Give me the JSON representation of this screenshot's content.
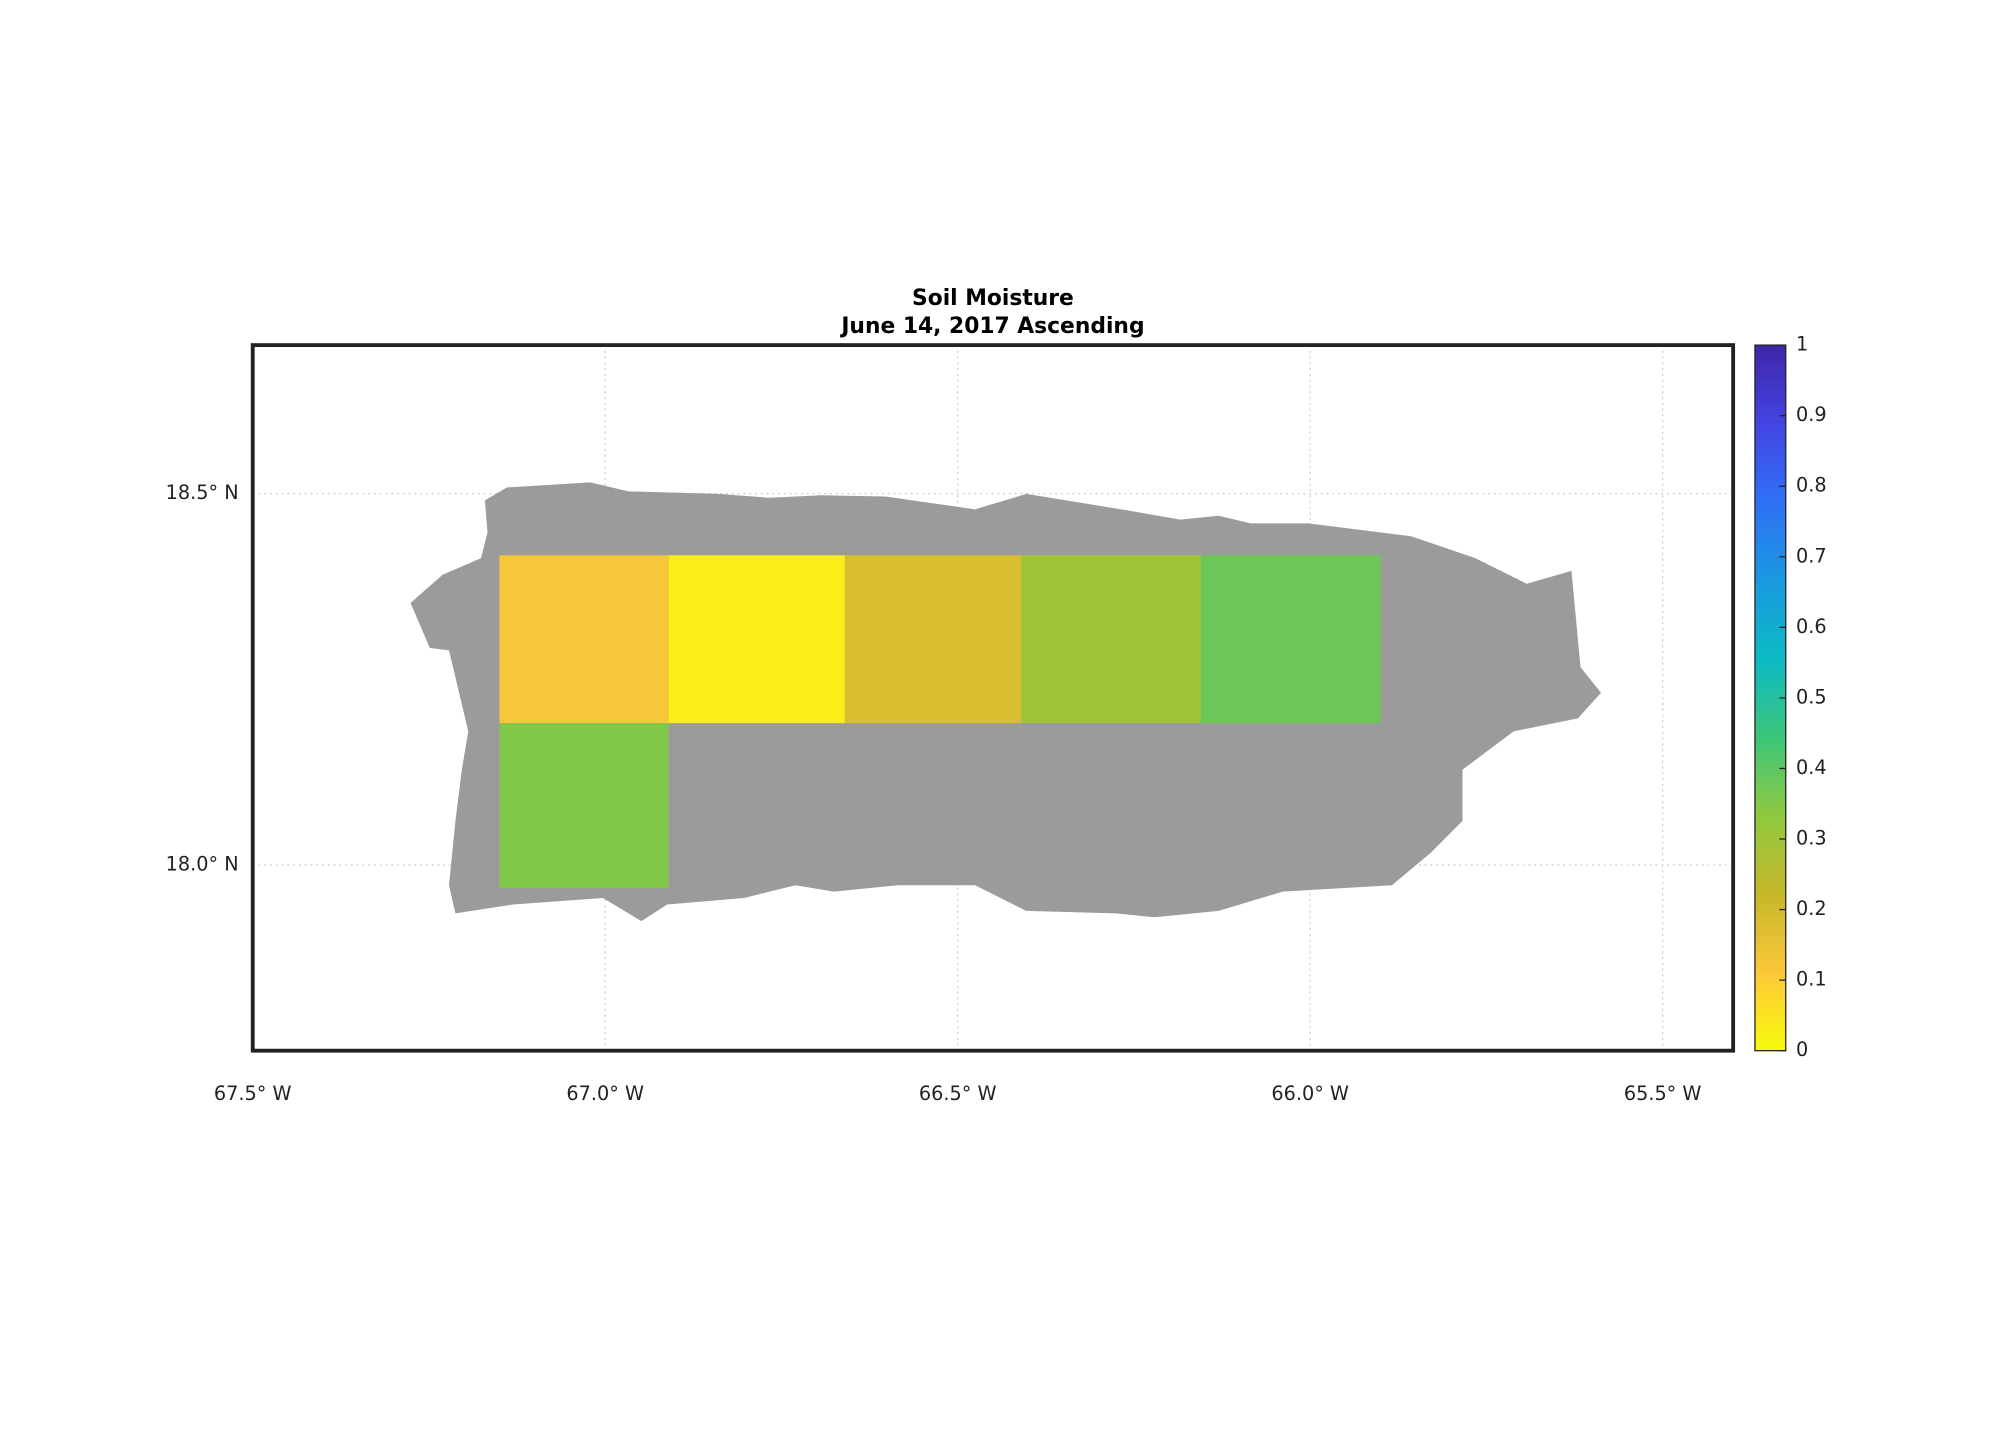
{
  "chart_data": {
    "type": "heatmap",
    "title": "Soil Moisture",
    "subtitle": "June 14, 2017 Ascending",
    "x_edges": [
      -67.15,
      -66.91,
      -66.66,
      -66.41,
      -66.155,
      -65.9
    ],
    "y_edges": [
      18.417,
      18.191,
      17.969
    ],
    "values": [
      [
        0.12,
        0.03,
        0.18,
        0.3,
        0.38
      ],
      [
        0.35,
        null,
        null,
        null,
        null
      ]
    ],
    "xlim": [
      -67.5,
      -65.4
    ],
    "ylim": [
      17.75,
      18.7
    ],
    "xticks": [
      {
        "value": -67.5,
        "label": "67.5° W"
      },
      {
        "value": -67.0,
        "label": "67.0° W"
      },
      {
        "value": -66.5,
        "label": "66.5° W"
      },
      {
        "value": -66.0,
        "label": "66.0° W"
      },
      {
        "value": -65.5,
        "label": "65.5° W"
      }
    ],
    "yticks": [
      {
        "value": 18.0,
        "label": "18.0° N"
      },
      {
        "value": 18.5,
        "label": "18.5° N"
      }
    ],
    "grid": true,
    "colorbar": {
      "lim": [
        0,
        1
      ],
      "ticks": [
        0,
        0.1,
        0.2,
        0.3,
        0.4,
        0.5,
        0.6,
        0.7,
        0.8,
        0.9,
        1
      ]
    },
    "colormap": [
      "#f9fb0e",
      "#fcc73a",
      "#c6b72a",
      "#8fc93f",
      "#3bc57a",
      "#0cbac4",
      "#1a99e0",
      "#2f70f5",
      "#4444e3",
      "#3e26a8"
    ]
  }
}
